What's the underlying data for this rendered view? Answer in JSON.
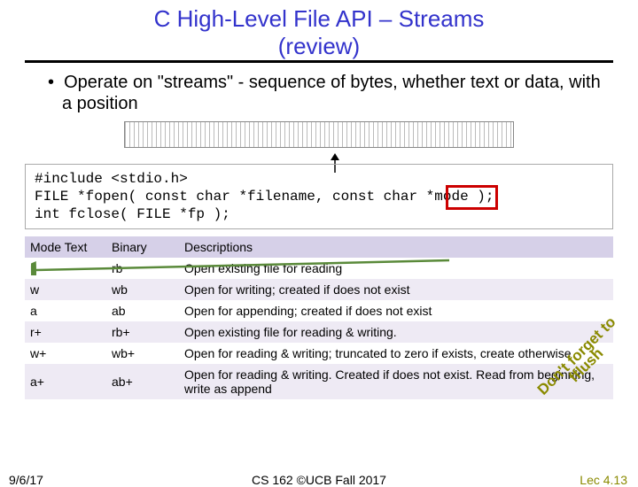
{
  "title_line1": "C High-Level File API – Streams",
  "title_line2": "(review)",
  "bullet": "Operate on \"streams\" - sequence of bytes, whether text or data, with a position",
  "code": {
    "l1": "#include <stdio.h>",
    "l2": "FILE *fopen( const char *filename, const char *mode );",
    "l3": "int fclose( FILE *fp );"
  },
  "table": {
    "headers": {
      "c1": "Mode Text",
      "c2": "Binary",
      "c3": "Descriptions"
    },
    "rows": [
      {
        "c1": "r",
        "c2": "rb",
        "c3": "Open existing file for reading"
      },
      {
        "c1": "w",
        "c2": "wb",
        "c3": "Open for writing; created if does not exist"
      },
      {
        "c1": "a",
        "c2": "ab",
        "c3": "Open for appending; created if does not exist"
      },
      {
        "c1": "r+",
        "c2": "rb+",
        "c3": "Open existing file for reading & writing."
      },
      {
        "c1": "w+",
        "c2": "wb+",
        "c3": "Open for reading & writing; truncated to zero if exists, create otherwise"
      },
      {
        "c1": "a+",
        "c2": "ab+",
        "c3": "Open for reading & writing. Created if does not exist. Read from beginning, write as append"
      }
    ]
  },
  "callout": "Don't forget to\nfflush",
  "footer": {
    "date": "9/6/17",
    "mid": "CS 162 ©UCB Fall 2017",
    "lec": "Lec 4.13"
  },
  "colors": {
    "title": "#3333cc",
    "header_bg": "#d6d0e8",
    "alt_bg": "#eeeaf4",
    "red": "#cc0000",
    "green_arrow": "#5a8a3a",
    "olive": "#8a8a00"
  }
}
